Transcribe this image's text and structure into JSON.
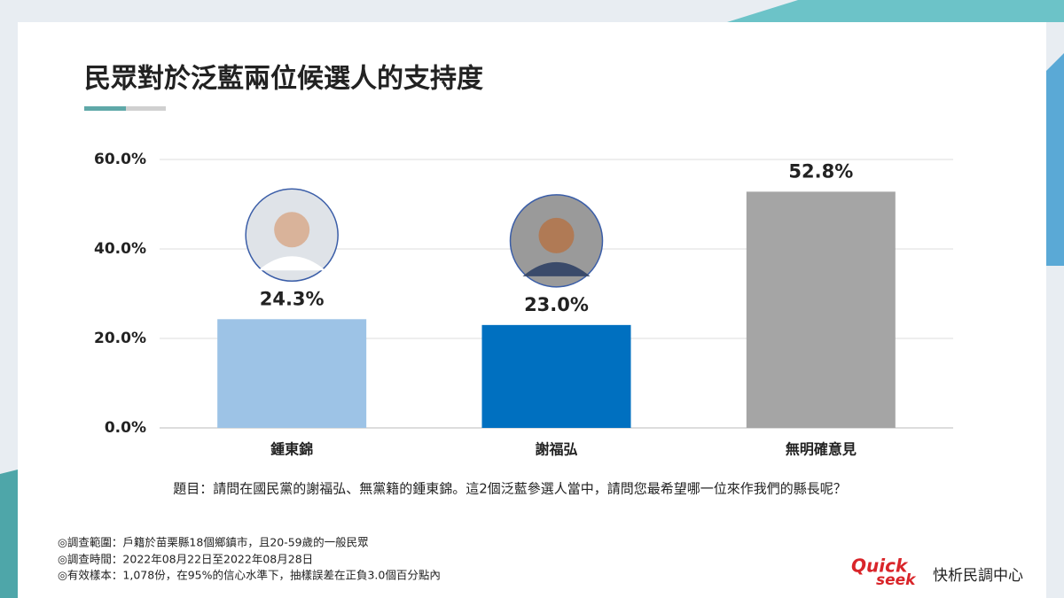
{
  "chart_data": {
    "type": "bar",
    "title": "民眾對於泛藍兩位候選人的支持度",
    "categories": [
      "鍾東錦",
      "謝福弘",
      "無明確意見"
    ],
    "values": [
      24.3,
      23.0,
      52.8
    ],
    "value_labels": [
      "24.3%",
      "23.0%",
      "52.8%"
    ],
    "colors": [
      "#9dc3e6",
      "#0070c0",
      "#a5a5a5"
    ],
    "ylim": [
      0,
      60
    ],
    "yticks": [
      {
        "value": 0,
        "label": "0.0%"
      },
      {
        "value": 20,
        "label": "20.0%"
      },
      {
        "value": 40,
        "label": "40.0%"
      },
      {
        "value": 60,
        "label": "60.0%"
      }
    ],
    "grid": true
  },
  "question": "題目：請問在國民黨的謝福弘、無黨籍的鍾東錦。這2個泛藍參選人當中，請問您最希望哪一位來作我們的縣長呢？",
  "notes": [
    "◎調查範圍：戶籍於苗栗縣18個鄉鎮市，且20-59歲的一般民眾",
    "◎調查時間：2022年08月22日至2022年08月28日",
    "◎有效樣本：1,078份，在95%的信心水準下，抽樣誤差在正負3.0個百分點內"
  ],
  "logo": {
    "mark_top": "Quick",
    "mark_bottom": "seek",
    "name": "快析民調中心"
  }
}
